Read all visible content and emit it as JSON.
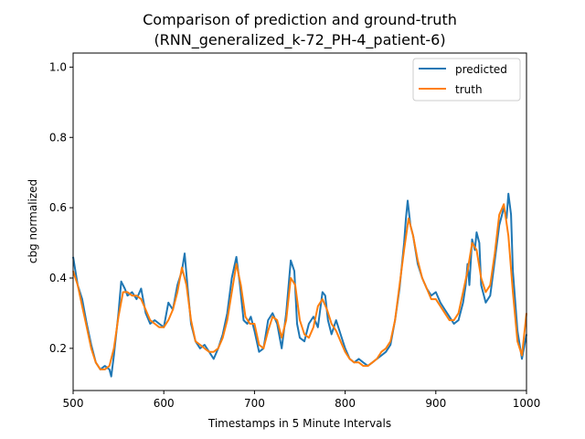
{
  "chart_data": {
    "type": "line",
    "title": "Comparison of prediction and ground-truth",
    "subtitle": "(RNN_generalized_k-72_PH-4_patient-6)",
    "xlabel": "Timestamps in 5 Minute Intervals",
    "ylabel": "cbg normalized",
    "xlim": [
      500,
      1000
    ],
    "ylim": [
      0.08,
      1.04
    ],
    "xticks": [
      500,
      600,
      700,
      800,
      900,
      1000
    ],
    "yticks": [
      0.2,
      0.4,
      0.6,
      0.8,
      1.0
    ],
    "xtick_labels": [
      "500",
      "600",
      "700",
      "800",
      "900",
      "1000"
    ],
    "ytick_labels": [
      "0.2",
      "0.4",
      "0.6",
      "0.8",
      "1.0"
    ],
    "grid": false,
    "legend_position": "top-right",
    "series": [
      {
        "name": "predicted",
        "color": "#1f77b4",
        "x": [
          500,
          505,
          510,
          515,
          520,
          525,
          530,
          535,
          540,
          542,
          545,
          550,
          553,
          557,
          560,
          565,
          570,
          575,
          580,
          585,
          590,
          595,
          600,
          605,
          610,
          615,
          620,
          623,
          626,
          630,
          635,
          640,
          645,
          650,
          655,
          660,
          665,
          670,
          675,
          680,
          684,
          688,
          692,
          696,
          700,
          705,
          710,
          715,
          720,
          725,
          730,
          735,
          740,
          744,
          747,
          750,
          755,
          760,
          765,
          770,
          775,
          778,
          781,
          785,
          790,
          795,
          800,
          805,
          810,
          815,
          820,
          825,
          830,
          835,
          840,
          845,
          850,
          855,
          860,
          865,
          867,
          869,
          872,
          875,
          880,
          885,
          890,
          895,
          900,
          905,
          910,
          915,
          920,
          925,
          930,
          933,
          935,
          937,
          940,
          943,
          945,
          948,
          950,
          955,
          960,
          965,
          970,
          975,
          978,
          980,
          983,
          985,
          990,
          995,
          1000
        ],
        "y": [
          0.46,
          0.38,
          0.34,
          0.27,
          0.21,
          0.16,
          0.14,
          0.15,
          0.14,
          0.12,
          0.18,
          0.3,
          0.39,
          0.37,
          0.35,
          0.36,
          0.34,
          0.37,
          0.3,
          0.27,
          0.28,
          0.27,
          0.26,
          0.33,
          0.31,
          0.38,
          0.42,
          0.47,
          0.38,
          0.27,
          0.22,
          0.2,
          0.21,
          0.19,
          0.17,
          0.2,
          0.24,
          0.3,
          0.4,
          0.46,
          0.38,
          0.28,
          0.27,
          0.29,
          0.25,
          0.19,
          0.2,
          0.28,
          0.3,
          0.27,
          0.2,
          0.3,
          0.45,
          0.42,
          0.27,
          0.23,
          0.22,
          0.27,
          0.29,
          0.26,
          0.36,
          0.35,
          0.28,
          0.24,
          0.28,
          0.24,
          0.2,
          0.17,
          0.16,
          0.17,
          0.16,
          0.15,
          0.16,
          0.17,
          0.18,
          0.19,
          0.21,
          0.28,
          0.37,
          0.5,
          0.57,
          0.62,
          0.55,
          0.52,
          0.44,
          0.4,
          0.37,
          0.35,
          0.36,
          0.33,
          0.31,
          0.29,
          0.27,
          0.28,
          0.33,
          0.38,
          0.44,
          0.38,
          0.51,
          0.48,
          0.53,
          0.5,
          0.38,
          0.33,
          0.35,
          0.45,
          0.55,
          0.6,
          0.57,
          0.64,
          0.58,
          0.42,
          0.25,
          0.17,
          0.24
        ]
      },
      {
        "name": "truth",
        "color": "#ff7f0e",
        "x": [
          500,
          505,
          510,
          515,
          520,
          525,
          530,
          535,
          540,
          545,
          550,
          555,
          560,
          565,
          570,
          575,
          580,
          585,
          590,
          595,
          600,
          605,
          610,
          615,
          620,
          625,
          630,
          635,
          640,
          645,
          650,
          655,
          660,
          665,
          670,
          675,
          680,
          685,
          690,
          695,
          700,
          705,
          710,
          715,
          720,
          725,
          730,
          735,
          740,
          745,
          750,
          755,
          760,
          765,
          770,
          775,
          780,
          785,
          790,
          795,
          800,
          805,
          810,
          815,
          820,
          825,
          830,
          835,
          840,
          845,
          850,
          855,
          860,
          865,
          870,
          875,
          880,
          885,
          890,
          895,
          900,
          905,
          910,
          915,
          920,
          925,
          930,
          935,
          940,
          945,
          950,
          955,
          960,
          965,
          970,
          975,
          980,
          985,
          990,
          995,
          1000
        ],
        "y": [
          0.42,
          0.38,
          0.32,
          0.26,
          0.2,
          0.16,
          0.14,
          0.14,
          0.15,
          0.2,
          0.29,
          0.36,
          0.36,
          0.35,
          0.35,
          0.34,
          0.31,
          0.28,
          0.27,
          0.26,
          0.26,
          0.28,
          0.31,
          0.36,
          0.43,
          0.38,
          0.28,
          0.22,
          0.21,
          0.2,
          0.19,
          0.19,
          0.2,
          0.23,
          0.28,
          0.36,
          0.44,
          0.38,
          0.29,
          0.27,
          0.27,
          0.21,
          0.2,
          0.25,
          0.29,
          0.28,
          0.23,
          0.28,
          0.4,
          0.38,
          0.28,
          0.24,
          0.23,
          0.26,
          0.32,
          0.34,
          0.31,
          0.27,
          0.25,
          0.22,
          0.19,
          0.17,
          0.16,
          0.16,
          0.15,
          0.15,
          0.16,
          0.17,
          0.19,
          0.2,
          0.22,
          0.28,
          0.38,
          0.48,
          0.57,
          0.52,
          0.45,
          0.4,
          0.37,
          0.34,
          0.34,
          0.32,
          0.3,
          0.28,
          0.28,
          0.3,
          0.36,
          0.42,
          0.5,
          0.48,
          0.4,
          0.36,
          0.38,
          0.47,
          0.58,
          0.61,
          0.52,
          0.36,
          0.22,
          0.18,
          0.3
        ]
      }
    ]
  }
}
